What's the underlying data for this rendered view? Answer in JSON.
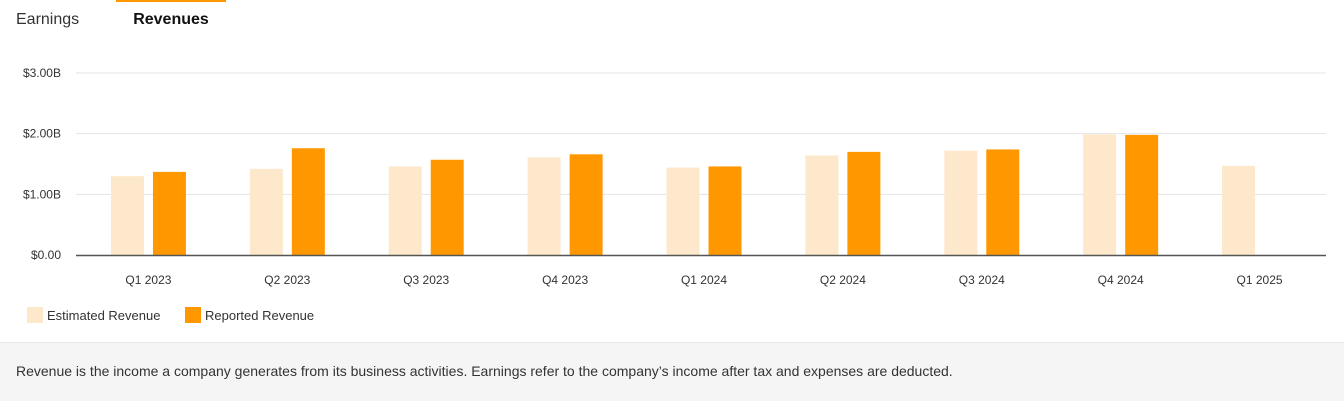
{
  "tabs": {
    "earnings": "Earnings",
    "revenues": "Revenues",
    "active": "revenues"
  },
  "colors": {
    "estimated": "#fde8cb",
    "reported": "#ff9800",
    "grid": "#e5e5e5",
    "axis": "#555555",
    "accent": "#ff9800"
  },
  "chart_data": {
    "type": "bar",
    "categories": [
      "Q1 2023",
      "Q2 2023",
      "Q3 2023",
      "Q4 2023",
      "Q1 2024",
      "Q2 2024",
      "Q3 2024",
      "Q4 2024",
      "Q1 2025"
    ],
    "series": [
      {
        "name": "Estimated Revenue",
        "values": [
          1.3,
          1.42,
          1.46,
          1.61,
          1.44,
          1.64,
          1.72,
          1.99,
          1.47
        ]
      },
      {
        "name": "Reported Revenue",
        "values": [
          1.37,
          1.76,
          1.57,
          1.66,
          1.46,
          1.7,
          1.74,
          1.98,
          null
        ]
      }
    ],
    "yticks": [
      "$0.00",
      "$1.00B",
      "$2.00B",
      "$3.00B"
    ],
    "ytick_values": [
      0,
      1,
      2,
      3
    ],
    "ylim": [
      0,
      3
    ],
    "unit": "B USD",
    "grid": true,
    "legend_position": "bottom-left"
  },
  "legend": {
    "estimated": "Estimated Revenue",
    "reported": "Reported Revenue"
  },
  "footer": {
    "text": "Revenue is the income a company generates from its business activities. Earnings refer to the company’s income after tax and expenses are deducted."
  }
}
